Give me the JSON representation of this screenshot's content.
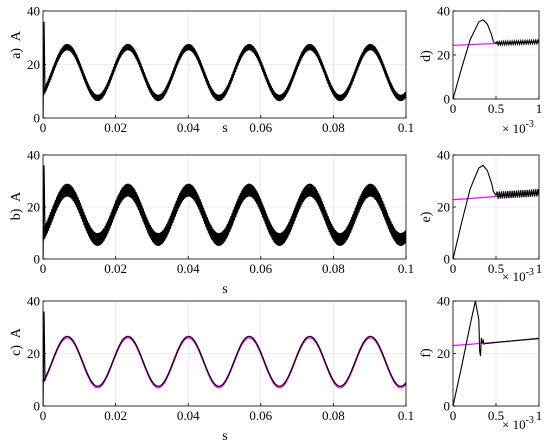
{
  "chart_data": [
    {
      "id": "a",
      "type": "line",
      "panel_label": "a)",
      "ylabel": "A",
      "xlabel": "s",
      "xlim": [
        0,
        0.1
      ],
      "ylim": [
        0,
        40
      ],
      "xticks": [
        0,
        0.02,
        0.04,
        0.06,
        0.08,
        0.1
      ],
      "xtick_labels": [
        "0",
        "0.02",
        "0.04",
        "0.06",
        "0.08",
        "0.1"
      ],
      "yticks": [
        0,
        20,
        40
      ],
      "ytick_labels": [
        "0",
        "20",
        "40"
      ],
      "grid": true,
      "waveform": {
        "offset": 17,
        "amplitude": 9.5,
        "period_s": 0.0167,
        "phase_rad": 0.95,
        "ripple_band": 1.2,
        "initial_peak": 36
      },
      "series": [
        {
          "color": "#000000"
        },
        {
          "color": "#ff00ff"
        }
      ]
    },
    {
      "id": "b",
      "type": "line",
      "panel_label": "b)",
      "ylabel": "A",
      "xlabel": "s",
      "xlim": [
        0,
        0.1
      ],
      "ylim": [
        0,
        40
      ],
      "xticks": [
        0,
        0.02,
        0.04,
        0.06,
        0.08,
        0.1
      ],
      "xtick_labels": [
        "0",
        "0.02",
        "0.04",
        "0.06",
        "0.08",
        "0.1"
      ],
      "yticks": [
        0,
        20,
        40
      ],
      "ytick_labels": [
        "0",
        "20",
        "40"
      ],
      "grid": true,
      "waveform": {
        "offset": 17,
        "amplitude": 9.5,
        "period_s": 0.0167,
        "phase_rad": 0.95,
        "ripple_band": 2.5,
        "initial_peak": 36
      },
      "series": [
        {
          "color": "#000000"
        },
        {
          "color": "#ff00ff"
        }
      ]
    },
    {
      "id": "c",
      "type": "line",
      "panel_label": "c)",
      "ylabel": "A",
      "xlabel": "s",
      "xlim": [
        0,
        0.1
      ],
      "ylim": [
        0,
        40
      ],
      "xticks": [
        0,
        0.02,
        0.04,
        0.06,
        0.08,
        0.1
      ],
      "xtick_labels": [
        "0",
        "0.02",
        "0.04",
        "0.06",
        "0.08",
        "0.1"
      ],
      "yticks": [
        0,
        20,
        40
      ],
      "ytick_labels": [
        "0",
        "20",
        "40"
      ],
      "grid": true,
      "waveform": {
        "offset": 17,
        "amplitude": 9.5,
        "period_s": 0.0167,
        "phase_rad": 0.95,
        "ripple_band": 0,
        "initial_peak": 36
      },
      "series": [
        {
          "color": "#000000"
        },
        {
          "color": "#ff00ff"
        }
      ]
    },
    {
      "id": "d",
      "type": "line",
      "panel_label": "d)",
      "xlim": [
        0,
        1
      ],
      "ylim": [
        0,
        40
      ],
      "x_multiplier_label": "× 10",
      "x_multiplier_exponent": "-3",
      "xticks": [
        0,
        0.5,
        1
      ],
      "xtick_labels": [
        "0",
        "0.5",
        "1"
      ],
      "yticks": [
        0,
        20,
        40
      ],
      "ytick_labels": [
        "0",
        "20",
        "40"
      ],
      "grid": true,
      "series": [
        {
          "color": "#000000",
          "x": [
            0,
            0.1,
            0.2,
            0.3,
            0.35,
            0.4,
            0.45,
            0.47,
            0.5,
            1.0
          ],
          "y": [
            0,
            14,
            27,
            35,
            36,
            34,
            29,
            26,
            25.3,
            26
          ]
        },
        {
          "color": "#ff00ff",
          "x": [
            0,
            1.0
          ],
          "y": [
            24.4,
            26
          ]
        }
      ],
      "ripple": {
        "x_start": 0.47,
        "x_end": 1.0,
        "amplitude": 0.8
      }
    },
    {
      "id": "e",
      "type": "line",
      "panel_label": "e)",
      "xlim": [
        0,
        1
      ],
      "ylim": [
        0,
        40
      ],
      "x_multiplier_label": "× 10",
      "x_multiplier_exponent": "-3",
      "xticks": [
        0,
        0.5,
        1
      ],
      "xtick_labels": [
        "0",
        "0.5",
        "1"
      ],
      "yticks": [
        0,
        20,
        40
      ],
      "ytick_labels": [
        "0",
        "20",
        "40"
      ],
      "grid": true,
      "series": [
        {
          "color": "#000000",
          "x": [
            0,
            0.1,
            0.2,
            0.3,
            0.35,
            0.4,
            0.45,
            0.47,
            0.5,
            1.0
          ],
          "y": [
            0,
            14,
            27,
            35,
            36,
            34,
            29,
            26,
            24.5,
            25.5
          ]
        },
        {
          "color": "#ff00ff",
          "x": [
            0,
            1.0
          ],
          "y": [
            22.8,
            25.2
          ]
        }
      ],
      "ripple": {
        "x_start": 0.47,
        "x_end": 1.0,
        "amplitude": 1.4
      }
    },
    {
      "id": "f",
      "type": "line",
      "panel_label": "f)",
      "xlim": [
        0,
        1
      ],
      "ylim": [
        0,
        40
      ],
      "x_multiplier_label": "× 10",
      "x_multiplier_exponent": "-3",
      "xticks": [
        0,
        0.5,
        1
      ],
      "xtick_labels": [
        "0",
        "0.5",
        "1"
      ],
      "yticks": [
        0,
        20,
        40
      ],
      "ytick_labels": [
        "0",
        "20",
        "40"
      ],
      "grid": true,
      "series": [
        {
          "color": "#000000",
          "x": [
            0,
            0.1,
            0.2,
            0.26,
            0.3,
            0.31,
            0.32,
            0.33,
            0.34,
            0.35,
            0.36,
            0.38,
            1.0
          ],
          "y": [
            0,
            15,
            31,
            40,
            33,
            21,
            19,
            26,
            24,
            25,
            23.6,
            23.8,
            25.8
          ]
        },
        {
          "color": "#ff00ff",
          "x": [
            0,
            1.0
          ],
          "y": [
            23.0,
            25.6
          ]
        }
      ]
    }
  ]
}
